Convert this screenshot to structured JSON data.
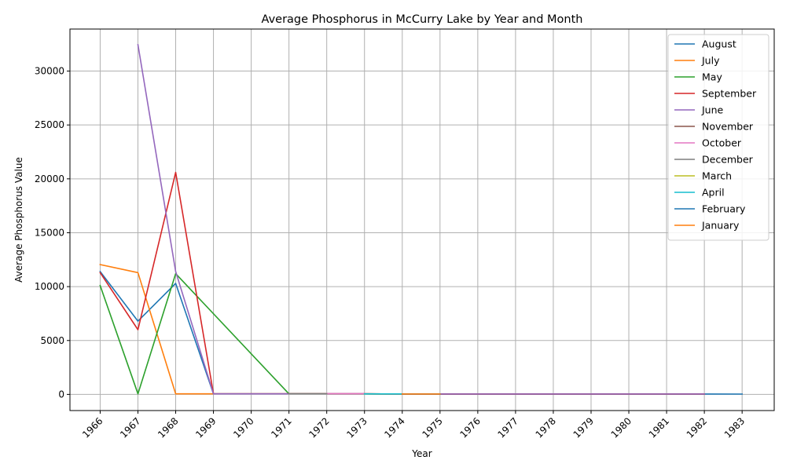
{
  "chart_data": {
    "type": "line",
    "title": "Average Phosphorus in McCurry Lake by Year and Month",
    "xlabel": "Year",
    "ylabel": "Average Phosphorus Value",
    "x_ticks": [
      1966,
      1967,
      1968,
      1969,
      1970,
      1971,
      1972,
      1973,
      1974,
      1975,
      1976,
      1977,
      1978,
      1979,
      1980,
      1981,
      1982,
      1983
    ],
    "y_ticks": [
      0,
      5000,
      10000,
      15000,
      20000,
      25000,
      30000
    ],
    "xlim": [
      1965.2,
      1983.85
    ],
    "ylim": [
      -1500,
      33900
    ],
    "grid": true,
    "legend_position": "upper right",
    "series": [
      {
        "name": "August",
        "color": "#1f77b4",
        "x": [
          1966,
          1967,
          1968,
          1969,
          1970,
          1971,
          1972,
          1973,
          1974,
          1975,
          1976,
          1977,
          1978,
          1979,
          1980,
          1981,
          1982,
          1983
        ],
        "y": [
          11400,
          6800,
          10300,
          50,
          50,
          50,
          50,
          50,
          40,
          40,
          40,
          40,
          40,
          40,
          40,
          40,
          40,
          30
        ]
      },
      {
        "name": "July",
        "color": "#ff7f0e",
        "x": [
          1966,
          1967,
          1968,
          1969,
          1970,
          1971,
          1972,
          1973,
          1974,
          1975,
          1976,
          1977,
          1978,
          1979,
          1980,
          1981,
          1982
        ],
        "y": [
          12050,
          11300,
          50,
          50,
          50,
          50,
          50,
          50,
          40,
          40,
          40,
          40,
          40,
          40,
          40,
          40,
          40
        ]
      },
      {
        "name": "May",
        "color": "#2ca02c",
        "x": [
          1966,
          1967,
          1968,
          1971,
          1972,
          1973,
          1974,
          1975,
          1976,
          1977,
          1978,
          1979,
          1980,
          1981,
          1982
        ],
        "y": [
          10100,
          50,
          11200,
          50,
          50,
          50,
          40,
          40,
          40,
          40,
          40,
          40,
          40,
          40,
          40
        ]
      },
      {
        "name": "September",
        "color": "#d62728",
        "x": [
          1966,
          1967,
          1968,
          1969,
          1970,
          1971,
          1972,
          1973,
          1974,
          1975,
          1976,
          1977,
          1978,
          1979,
          1980,
          1981,
          1982
        ],
        "y": [
          11300,
          6000,
          20600,
          50,
          50,
          50,
          50,
          50,
          40,
          40,
          40,
          40,
          40,
          40,
          40,
          40,
          40
        ]
      },
      {
        "name": "June",
        "color": "#9467bd",
        "x": [
          1967,
          1968,
          1969,
          1970,
          1971,
          1972,
          1973,
          1974,
          1975,
          1976,
          1977,
          1978,
          1979,
          1980,
          1981,
          1982
        ],
        "y": [
          32450,
          11400,
          50,
          50,
          50,
          50,
          50,
          40,
          40,
          40,
          40,
          40,
          40,
          40,
          40,
          40
        ]
      },
      {
        "name": "November",
        "color": "#8c564b",
        "x": [
          1971,
          1972,
          1973
        ],
        "y": [
          60,
          60,
          60
        ]
      },
      {
        "name": "October",
        "color": "#e377c2",
        "x": [
          1972,
          1973
        ],
        "y": [
          70,
          70
        ]
      },
      {
        "name": "December",
        "color": "#7f7f7f",
        "x": [
          1971,
          1972
        ],
        "y": [
          55,
          55
        ]
      },
      {
        "name": "March",
        "color": "#bcbd22",
        "x": [
          1973,
          1974
        ],
        "y": [
          45,
          45
        ]
      },
      {
        "name": "April",
        "color": "#17becf",
        "x": [
          1973,
          1974,
          1975
        ],
        "y": [
          45,
          45,
          45
        ]
      },
      {
        "name": "February",
        "color": "#1f77b4",
        "x": [
          1974,
          1975
        ],
        "y": [
          40,
          40
        ]
      },
      {
        "name": "January",
        "color": "#ff7f0e",
        "x": [
          1974,
          1975
        ],
        "y": [
          40,
          40
        ]
      }
    ]
  }
}
